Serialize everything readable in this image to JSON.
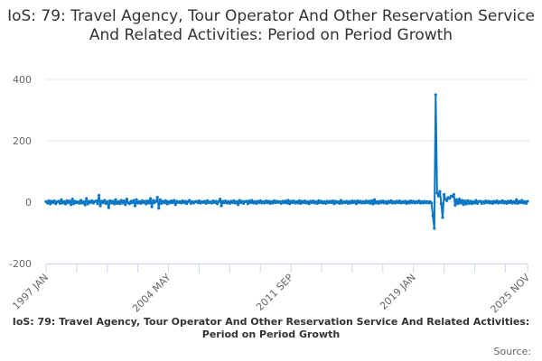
{
  "title": "IoS: 79: Travel Agency, Tour Operator And Other Reservation Service And Related Activities: Period on Period Growth",
  "footer": {
    "title": "IoS: 79: Travel Agency, Tour Operator And Other Reservation Service And Related Activities: Period on Period Growth",
    "source": "Source:"
  },
  "chart_data": {
    "type": "line",
    "title": "IoS: 79: Travel Agency, Tour Operator And Other Reservation Service And Related Activities: Period on Period Growth",
    "xlabel": "",
    "ylabel": "",
    "x_start": "1997 JAN",
    "x_end": "2025 NOV",
    "frequency": "monthly",
    "ylim": [
      -200,
      400
    ],
    "yticks": [
      -200,
      0,
      200,
      400
    ],
    "xtick_labels": [
      "1997 JAN",
      "2004 MAY",
      "2011 SEP",
      "2019 JAN",
      "2025 NOV"
    ],
    "grid": true,
    "line_color": "#0a77c4",
    "values": [
      2,
      -3,
      5,
      -6,
      3,
      -2,
      4,
      -5,
      1,
      3,
      -4,
      8,
      -3,
      2,
      -6,
      5,
      -2,
      4,
      -8,
      10,
      -5,
      3,
      -2,
      1,
      -4,
      6,
      -3,
      2,
      -9,
      12,
      -6,
      3,
      -2,
      5,
      -3,
      2,
      4,
      -5,
      22,
      -12,
      3,
      -2,
      6,
      -4,
      2,
      -18,
      5,
      -3,
      3,
      -6,
      8,
      -4,
      2,
      -5,
      6,
      -3,
      4,
      -8,
      10,
      -2,
      -5,
      3,
      -2,
      6,
      -12,
      8,
      -3,
      2,
      -4,
      5,
      -2,
      3,
      -6,
      4,
      -3,
      12,
      -15,
      6,
      -2,
      3,
      16,
      -20,
      8,
      -4,
      3,
      -2,
      5,
      -6,
      2,
      -3,
      4,
      -2,
      6,
      -8,
      3,
      -1,
      2,
      -3,
      4,
      -2,
      3,
      -5,
      2,
      6,
      -4,
      2,
      -3,
      1,
      3,
      -2,
      4,
      -3,
      2,
      -1,
      3,
      -4,
      5,
      -2,
      1,
      -3,
      4,
      -2,
      3,
      -5,
      2,
      10,
      -12,
      3,
      -2,
      4,
      -3,
      2,
      -4,
      3,
      -2,
      5,
      -3,
      2,
      -8,
      6,
      -2,
      3,
      -4,
      2,
      3,
      -5,
      4,
      -2,
      6,
      -3,
      2,
      -4,
      3,
      -2,
      5,
      -3,
      2,
      -3,
      4,
      -2,
      3,
      -4,
      2,
      -3,
      5,
      -2,
      3,
      -1,
      2,
      -4,
      3,
      -2,
      4,
      -3,
      6,
      -5,
      3,
      -2,
      4,
      -3,
      2,
      -3,
      5,
      -4,
      3,
      -2,
      4,
      -3,
      2,
      -5,
      3,
      -2,
      4,
      -3,
      2,
      -4,
      5,
      -2,
      3,
      -3,
      2,
      -4,
      3,
      -2,
      3,
      -2,
      4,
      -5,
      3,
      -2,
      2,
      -4,
      6,
      -3,
      2,
      -2,
      3,
      -4,
      2,
      -3,
      4,
      -2,
      3,
      -5,
      4,
      -2,
      3,
      -3,
      2,
      -3,
      4,
      -2,
      3,
      -4,
      5,
      -6,
      8,
      -3,
      2,
      -4,
      3,
      -2,
      4,
      -3,
      2,
      -4,
      3,
      -2,
      5,
      -3,
      2,
      -3,
      3,
      -2,
      4,
      -3,
      2,
      -2,
      3,
      -4,
      2,
      -3,
      4,
      -2,
      3,
      -3,
      2,
      -2,
      4,
      -3,
      2,
      -3,
      3,
      -2,
      2,
      -3,
      2,
      -3,
      -45,
      -85,
      350,
      30,
      20,
      35,
      -5,
      -50,
      25,
      10,
      5,
      15,
      12,
      20,
      18,
      25,
      -10,
      8,
      -5,
      10,
      -3,
      6,
      -8,
      4,
      -6,
      5,
      -4,
      3,
      -5,
      2,
      -3,
      6,
      -4,
      2,
      3,
      -4,
      2,
      -3,
      4,
      -2,
      3,
      -3,
      2,
      -4,
      3,
      -2,
      4,
      -3,
      2,
      -2,
      5,
      -3,
      2,
      -4,
      3,
      -2,
      4,
      -3,
      2,
      -3,
      8,
      -4,
      3,
      -2,
      6,
      -3,
      2,
      -4,
      3
    ]
  }
}
